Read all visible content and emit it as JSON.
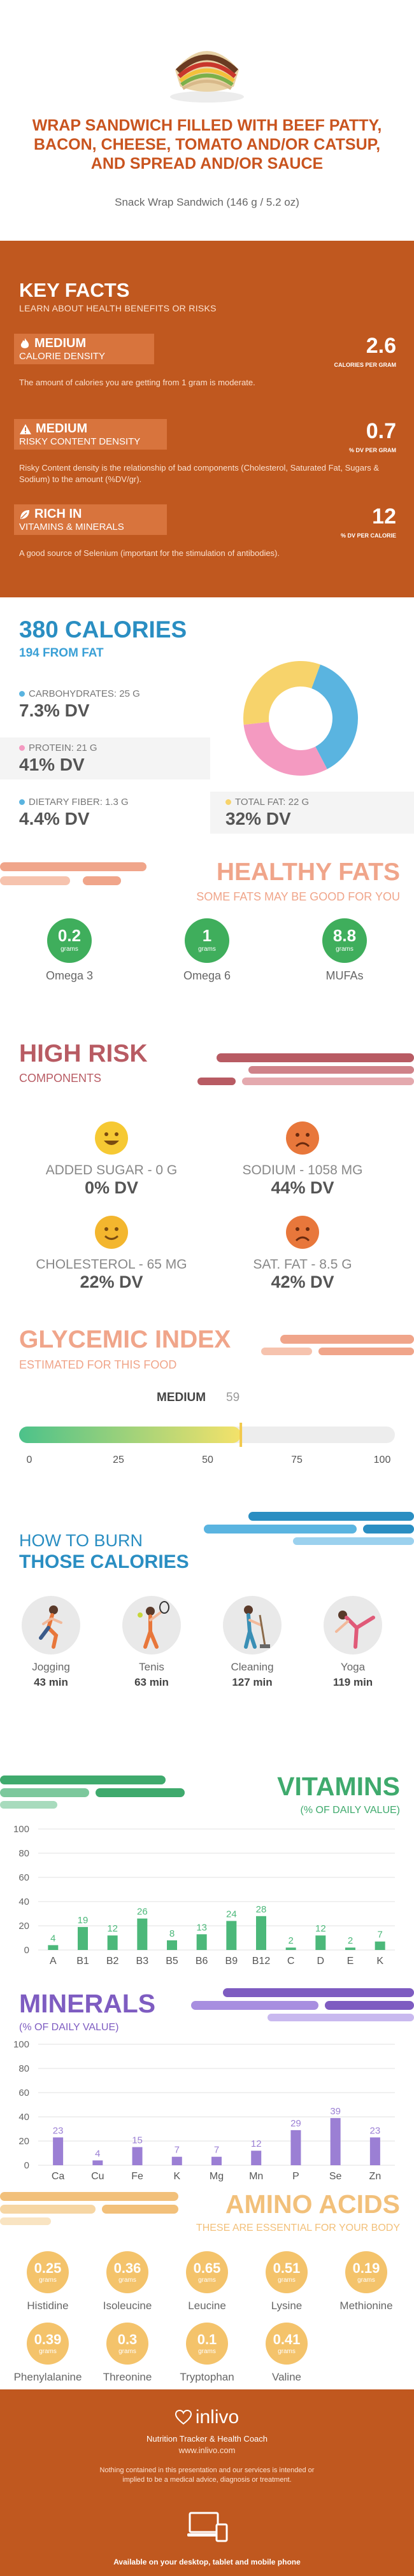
{
  "header": {
    "title": "WRAP SANDWICH FILLED WITH BEEF PATTY, BACON, CHEESE, TOMATO AND/OR CATSUP, AND SPREAD AND/OR SAUCE",
    "subtitle": "Snack Wrap Sandwich (146 g / 5.2 oz)",
    "image_icon": "wrap-sandwich-icon"
  },
  "key_facts": {
    "title": "KEY FACTS",
    "subtitle": "LEARN ABOUT HEALTH BENEFITS OR RISKS",
    "items": [
      {
        "icon": "flame-icon",
        "level": "MEDIUM",
        "name": "CALORIE DENSITY",
        "value": "2.6",
        "unit": "CALORIES PER GRAM",
        "desc": "The amount of calories you are getting from 1 gram is moderate."
      },
      {
        "icon": "warning-icon",
        "level": "MEDIUM",
        "name": "RISKY CONTENT DENSITY",
        "value": "0.7",
        "unit": "% DV PER GRAM",
        "desc": "Risky Content density is the relationship of bad components (Cholesterol, Saturated Fat, Sugars & Sodium) to the amount (%DV/gr)."
      },
      {
        "icon": "leaf-icon",
        "level": "RICH IN",
        "name": "VITAMINS & MINERALS",
        "value": "12",
        "unit": "% DV PER CALORIE",
        "desc": "A good source of Selenium (important for the stimulation of antibodies)."
      }
    ]
  },
  "calories": {
    "title": "380 CALORIES",
    "from_fat": "194 FROM FAT",
    "macros": [
      {
        "label": "CARBOHYDRATES: 25 g",
        "dv": "7.3% DV",
        "color": "#5ab4e0"
      },
      {
        "label": "PROTEIN: 21 g",
        "dv": "41% DV",
        "color": "#f49ac1"
      },
      {
        "label": "DIETARY FIBER: 1.3 g",
        "dv": "4.4% DV",
        "color": "#5ab4e0"
      },
      {
        "label": "TOTAL FAT: 22 g",
        "dv": "32% DV",
        "color": "#f7d36b"
      }
    ],
    "donut": [
      {
        "name": "carbohydrates",
        "value": 25,
        "color": "#5ab4e0"
      },
      {
        "name": "protein",
        "value": 21,
        "color": "#f49ac1"
      },
      {
        "name": "total fat",
        "value": 22,
        "color": "#f7d36b"
      }
    ]
  },
  "healthy_fats": {
    "title": "HEALTHY FATS",
    "subtitle": "SOME FATS MAY BE GOOD FOR YOU",
    "items": [
      {
        "value": "0.2",
        "unit": "grams",
        "label": "Omega 3"
      },
      {
        "value": "1",
        "unit": "grams",
        "label": "Omega 6"
      },
      {
        "value": "8.8",
        "unit": "grams",
        "label": "MUFAs"
      }
    ]
  },
  "high_risk": {
    "title": "HIGH RISK",
    "subtitle": "COMPONENTS",
    "items": [
      {
        "label": "ADDED SUGAR - 0 g",
        "dv": "0% DV",
        "face": "happy-face-icon"
      },
      {
        "label": "SODIUM - 1058 mg",
        "dv": "44% DV",
        "face": "sad-face-icon"
      },
      {
        "label": "CHOLESTEROL - 65 mg",
        "dv": "22% DV",
        "face": "smile-face-icon"
      },
      {
        "label": "SAT. FAT - 8.5 g",
        "dv": "42% DV",
        "face": "sad-face-icon"
      }
    ]
  },
  "glycemic": {
    "title": "GLYCEMIC INDEX",
    "subtitle": "ESTIMATED FOR THIS FOOD",
    "level": "MEDIUM",
    "value": 59,
    "value_label": "59",
    "ticks": [
      "0",
      "25",
      "50",
      "75",
      "100"
    ]
  },
  "burn": {
    "title_a": "HOW TO BURN",
    "title_b": "THOSE CALORIES",
    "items": [
      {
        "name": "Jogging",
        "minutes": "43 min",
        "icon": "jogging-icon"
      },
      {
        "name": "Tenis",
        "minutes": "63 min",
        "icon": "tennis-icon"
      },
      {
        "name": "Cleaning",
        "minutes": "127 min",
        "icon": "cleaning-icon"
      },
      {
        "name": "Yoga",
        "minutes": "119 min",
        "icon": "yoga-icon"
      }
    ]
  },
  "vitamins": {
    "title": "VITAMINS",
    "subtitle": "(% OF DAILY VALUE)",
    "y_ticks": [
      "0",
      "20",
      "40",
      "60",
      "80",
      "100"
    ]
  },
  "minerals": {
    "title": "MINERALS",
    "subtitle": "(% OF DAILY VALUE)",
    "y_ticks": [
      "0",
      "20",
      "40",
      "60",
      "80",
      "100"
    ]
  },
  "chart_data": [
    {
      "type": "bar",
      "title": "VITAMINS",
      "categories": [
        "A",
        "B1",
        "B2",
        "B3",
        "B5",
        "B6",
        "B9",
        "B12",
        "C",
        "D",
        "E",
        "K"
      ],
      "values": [
        4,
        19,
        12,
        26,
        8,
        13,
        24,
        28,
        2,
        12,
        2,
        7
      ],
      "labels": [
        "4",
        "19",
        "12",
        "26",
        "8",
        "13",
        "24",
        "28",
        "2",
        "12",
        "2",
        "7"
      ],
      "ylim": [
        0,
        100
      ],
      "color": "#4cb87a"
    },
    {
      "type": "bar",
      "title": "MINERALS",
      "categories": [
        "Ca",
        "Cu",
        "Fe",
        "K",
        "Mg",
        "Mn",
        "P",
        "Se",
        "Zn"
      ],
      "values": [
        23,
        4,
        15,
        7,
        7,
        12,
        29,
        39,
        23
      ],
      "labels": [
        "23",
        "4",
        "15",
        "7",
        "7",
        "12",
        "29",
        "39",
        "23"
      ],
      "ylim": [
        0,
        100
      ],
      "color": "#9b7fd4"
    }
  ],
  "amino": {
    "title": "AMINO ACIDS",
    "subtitle": "THESE ARE ESSENTIAL FOR YOUR BODY",
    "items": [
      {
        "value": "0.25",
        "unit": "grams",
        "label": "Histidine"
      },
      {
        "value": "0.36",
        "unit": "grams",
        "label": "Isoleucine"
      },
      {
        "value": "0.65",
        "unit": "grams",
        "label": "Leucine"
      },
      {
        "value": "0.51",
        "unit": "grams",
        "label": "Lysine"
      },
      {
        "value": "0.19",
        "unit": "grams",
        "label": "Methionine"
      },
      {
        "value": "0.39",
        "unit": "grams",
        "label": "Phenylalanine"
      },
      {
        "value": "0.3",
        "unit": "grams",
        "label": "Threonine"
      },
      {
        "value": "0.1",
        "unit": "grams",
        "label": "Tryptophan"
      },
      {
        "value": "0.41",
        "unit": "grams",
        "label": "Valine"
      }
    ]
  },
  "footer": {
    "brand": "inlivo",
    "tagline": "Nutrition Tracker & Health Coach",
    "url": "www.inlivo.com",
    "disclaimer": "Nothing contained in this presentation and our services is intended or implied to be a medical advice, diagnosis or treatment.",
    "available": "Available on your desktop, tablet and mobile phone"
  }
}
